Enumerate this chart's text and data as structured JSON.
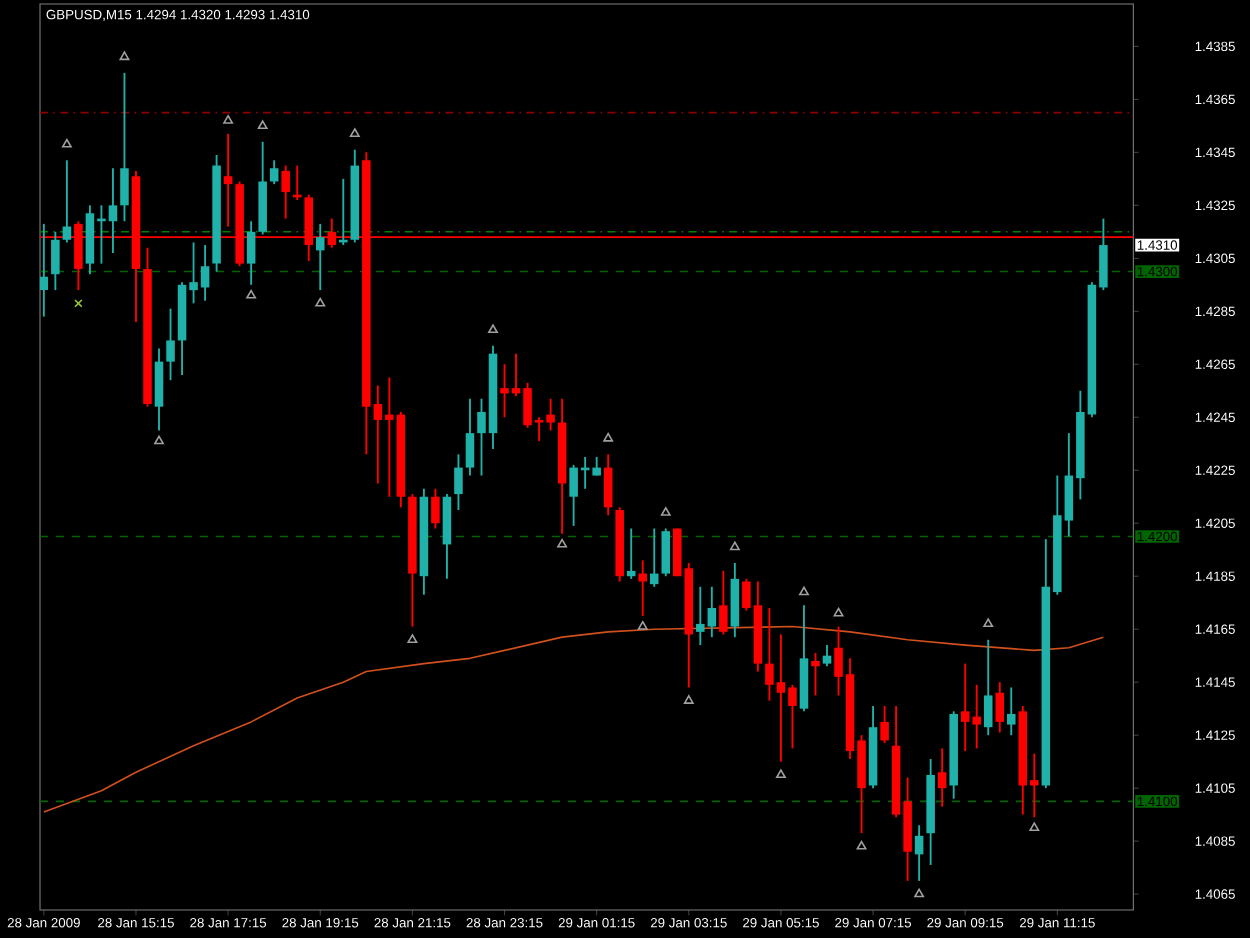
{
  "chart_data": {
    "type": "candlestick",
    "title": "GBPUSD,M15  1.4294 1.4320 1.4293 1.4310",
    "x": [
      "2009-01-28T13:15",
      "2009-01-28T13:30",
      "2009-01-28T13:45",
      "2009-01-28T14:00",
      "2009-01-28T14:15",
      "2009-01-28T14:30",
      "2009-01-28T14:45",
      "2009-01-28T15:00",
      "2009-01-28T15:15",
      "2009-01-28T15:30",
      "2009-01-28T15:45",
      "2009-01-28T16:00",
      "2009-01-28T16:15",
      "2009-01-28T16:30",
      "2009-01-28T16:45",
      "2009-01-28T17:00",
      "2009-01-28T17:15",
      "2009-01-28T17:30",
      "2009-01-28T17:45",
      "2009-01-28T18:00",
      "2009-01-28T18:15",
      "2009-01-28T18:30",
      "2009-01-28T18:45",
      "2009-01-28T19:00",
      "2009-01-28T19:15",
      "2009-01-28T19:30",
      "2009-01-28T19:45",
      "2009-01-28T20:00",
      "2009-01-28T20:15",
      "2009-01-28T20:30",
      "2009-01-28T20:45",
      "2009-01-28T21:00",
      "2009-01-28T21:15",
      "2009-01-28T21:30",
      "2009-01-28T21:45",
      "2009-01-28T22:00",
      "2009-01-28T22:15",
      "2009-01-28T22:30",
      "2009-01-28T22:45",
      "2009-01-28T23:00",
      "2009-01-28T23:15",
      "2009-01-28T23:30",
      "2009-01-28T23:45",
      "2009-01-29T00:00",
      "2009-01-29T00:15",
      "2009-01-29T00:30",
      "2009-01-29T00:45",
      "2009-01-29T01:00",
      "2009-01-29T01:15",
      "2009-01-29T01:30",
      "2009-01-29T01:45",
      "2009-01-29T02:00",
      "2009-01-29T02:15",
      "2009-01-29T02:30",
      "2009-01-29T02:45",
      "2009-01-29T03:00",
      "2009-01-29T03:15",
      "2009-01-29T03:30",
      "2009-01-29T03:45",
      "2009-01-29T04:00",
      "2009-01-29T04:15",
      "2009-01-29T04:30",
      "2009-01-29T04:45",
      "2009-01-29T05:00",
      "2009-01-29T05:15",
      "2009-01-29T05:30",
      "2009-01-29T05:45",
      "2009-01-29T06:00",
      "2009-01-29T06:15",
      "2009-01-29T06:30",
      "2009-01-29T06:45",
      "2009-01-29T07:00",
      "2009-01-29T07:15",
      "2009-01-29T07:30",
      "2009-01-29T07:45",
      "2009-01-29T08:00",
      "2009-01-29T08:15",
      "2009-01-29T08:30",
      "2009-01-29T08:45",
      "2009-01-29T09:00",
      "2009-01-29T09:15",
      "2009-01-29T09:30",
      "2009-01-29T09:45",
      "2009-01-29T10:00",
      "2009-01-29T10:15",
      "2009-01-29T10:30",
      "2009-01-29T10:45",
      "2009-01-29T11:00",
      "2009-01-29T11:15",
      "2009-01-29T11:30",
      "2009-01-29T11:45",
      "2009-01-29T12:00",
      "2009-01-29T12:15"
    ],
    "ohlc": [
      [
        1.4293,
        1.4318,
        1.4283,
        1.4298
      ],
      [
        1.4299,
        1.4315,
        1.4293,
        1.4312
      ],
      [
        1.4312,
        1.4342,
        1.4311,
        1.4317
      ],
      [
        1.4318,
        1.4319,
        1.4293,
        1.4301
      ],
      [
        1.4303,
        1.4325,
        1.4299,
        1.4322
      ],
      [
        1.4319,
        1.4325,
        1.4303,
        1.432
      ],
      [
        1.4319,
        1.4339,
        1.4307,
        1.4325
      ],
      [
        1.4325,
        1.4375,
        1.4319,
        1.4339
      ],
      [
        1.4336,
        1.4338,
        1.4281,
        1.4301
      ],
      [
        1.4301,
        1.4309,
        1.4249,
        1.425
      ],
      [
        1.4249,
        1.4271,
        1.424,
        1.4266
      ],
      [
        1.4266,
        1.4286,
        1.4259,
        1.4274
      ],
      [
        1.4274,
        1.4296,
        1.4261,
        1.4295
      ],
      [
        1.4293,
        1.4311,
        1.4288,
        1.4296
      ],
      [
        1.4294,
        1.431,
        1.4289,
        1.4302
      ],
      [
        1.4303,
        1.4344,
        1.43,
        1.434
      ],
      [
        1.4336,
        1.4352,
        1.4317,
        1.4333
      ],
      [
        1.4333,
        1.4334,
        1.4302,
        1.4303
      ],
      [
        1.4303,
        1.4319,
        1.4295,
        1.4315
      ],
      [
        1.4315,
        1.4349,
        1.4314,
        1.4334
      ],
      [
        1.4334,
        1.4342,
        1.4333,
        1.4339
      ],
      [
        1.4338,
        1.434,
        1.432,
        1.433
      ],
      [
        1.4329,
        1.434,
        1.4327,
        1.4328
      ],
      [
        1.4328,
        1.4329,
        1.4304,
        1.431
      ],
      [
        1.4308,
        1.4318,
        1.4293,
        1.4313
      ],
      [
        1.4315,
        1.432,
        1.4309,
        1.431
      ],
      [
        1.4311,
        1.4335,
        1.431,
        1.4312
      ],
      [
        1.4312,
        1.4346,
        1.4311,
        1.434
      ],
      [
        1.4342,
        1.4345,
        1.4231,
        1.4249
      ],
      [
        1.425,
        1.4257,
        1.422,
        1.4244
      ],
      [
        1.4246,
        1.426,
        1.4215,
        1.4244
      ],
      [
        1.4246,
        1.4247,
        1.4211,
        1.4215
      ],
      [
        1.4215,
        1.4216,
        1.4166,
        1.4186
      ],
      [
        1.4185,
        1.4218,
        1.4178,
        1.4215
      ],
      [
        1.4215,
        1.4218,
        1.4203,
        1.4205
      ],
      [
        1.4197,
        1.4216,
        1.4184,
        1.4215
      ],
      [
        1.4216,
        1.4231,
        1.421,
        1.4226
      ],
      [
        1.4226,
        1.4252,
        1.4223,
        1.4239
      ],
      [
        1.4239,
        1.4252,
        1.4223,
        1.4247
      ],
      [
        1.4239,
        1.4272,
        1.4233,
        1.4269
      ],
      [
        1.4256,
        1.4265,
        1.4245,
        1.4254
      ],
      [
        1.4256,
        1.4269,
        1.4253,
        1.4254
      ],
      [
        1.4256,
        1.4258,
        1.4241,
        1.4242
      ],
      [
        1.4244,
        1.4245,
        1.4236,
        1.4243
      ],
      [
        1.4246,
        1.4252,
        1.424,
        1.4243
      ],
      [
        1.4243,
        1.4252,
        1.4201,
        1.422
      ],
      [
        1.4215,
        1.4227,
        1.4204,
        1.4226
      ],
      [
        1.4225,
        1.423,
        1.4218,
        1.4226
      ],
      [
        1.4223,
        1.423,
        1.4223,
        1.4226
      ],
      [
        1.4226,
        1.4231,
        1.4208,
        1.4211
      ],
      [
        1.421,
        1.4211,
        1.4183,
        1.4185
      ],
      [
        1.4185,
        1.4203,
        1.4184,
        1.4187
      ],
      [
        1.4186,
        1.4191,
        1.417,
        1.4183
      ],
      [
        1.4182,
        1.4203,
        1.4181,
        1.4186
      ],
      [
        1.4186,
        1.4203,
        1.4185,
        1.4202
      ],
      [
        1.4203,
        1.4203,
        1.4185,
        1.4185
      ],
      [
        1.4188,
        1.419,
        1.4143,
        1.4163
      ],
      [
        1.4164,
        1.4181,
        1.4159,
        1.4167
      ],
      [
        1.4166,
        1.4181,
        1.4162,
        1.4173
      ],
      [
        1.4174,
        1.4187,
        1.4163,
        1.4164
      ],
      [
        1.4166,
        1.419,
        1.4162,
        1.4184
      ],
      [
        1.4183,
        1.4184,
        1.4172,
        1.4173
      ],
      [
        1.4174,
        1.4183,
        1.4149,
        1.4152
      ],
      [
        1.4152,
        1.4173,
        1.4138,
        1.4144
      ],
      [
        1.4145,
        1.4163,
        1.4115,
        1.4141
      ],
      [
        1.4143,
        1.4144,
        1.412,
        1.4136
      ],
      [
        1.4135,
        1.4174,
        1.4134,
        1.4154
      ],
      [
        1.4153,
        1.4156,
        1.414,
        1.4151
      ],
      [
        1.4152,
        1.4159,
        1.4151,
        1.4155
      ],
      [
        1.4158,
        1.4166,
        1.414,
        1.4147
      ],
      [
        1.4148,
        1.4154,
        1.4116,
        1.4119
      ],
      [
        1.4123,
        1.4125,
        1.4088,
        1.4105
      ],
      [
        1.4106,
        1.4136,
        1.4105,
        1.4128
      ],
      [
        1.413,
        1.4136,
        1.4122,
        1.4123
      ],
      [
        1.4121,
        1.4136,
        1.4094,
        1.4095
      ],
      [
        1.41,
        1.4109,
        1.407,
        1.4081
      ],
      [
        1.408,
        1.4091,
        1.407,
        1.4087
      ],
      [
        1.4088,
        1.4116,
        1.4076,
        1.411
      ],
      [
        1.4111,
        1.412,
        1.4098,
        1.4105
      ],
      [
        1.4106,
        1.4134,
        1.4101,
        1.4133
      ],
      [
        1.4134,
        1.4152,
        1.4119,
        1.413
      ],
      [
        1.4132,
        1.4144,
        1.412,
        1.4129
      ],
      [
        1.4128,
        1.4161,
        1.4125,
        1.414
      ],
      [
        1.4141,
        1.4145,
        1.4126,
        1.413
      ],
      [
        1.4129,
        1.4143,
        1.4125,
        1.4133
      ],
      [
        1.4134,
        1.4136,
        1.4095,
        1.4106
      ],
      [
        1.4108,
        1.4118,
        1.4094,
        1.4106
      ],
      [
        1.4106,
        1.4199,
        1.4105,
        1.4181
      ],
      [
        1.4179,
        1.4223,
        1.4178,
        1.4208
      ],
      [
        1.4206,
        1.4239,
        1.42,
        1.4223
      ],
      [
        1.4222,
        1.4255,
        1.4214,
        1.4247
      ],
      [
        1.4246,
        1.4296,
        1.4245,
        1.4295
      ],
      [
        1.4294,
        1.432,
        1.4293,
        1.431
      ]
    ],
    "colors": [
      "#20b2aa",
      "#20b2aa",
      "#20b2aa",
      "#ff0000",
      "#20b2aa",
      "#20b2aa",
      "#20b2aa",
      "#20b2aa",
      "#ff0000",
      "#ff0000",
      "#20b2aa",
      "#20b2aa",
      "#20b2aa",
      "#20b2aa",
      "#20b2aa",
      "#20b2aa",
      "#ff0000",
      "#ff0000",
      "#20b2aa",
      "#20b2aa",
      "#20b2aa",
      "#ff0000",
      "#ff0000",
      "#ff0000",
      "#20b2aa",
      "#ff0000",
      "#20b2aa",
      "#20b2aa",
      "#ff0000",
      "#ff0000",
      "#ff0000",
      "#ff0000",
      "#ff0000",
      "#20b2aa",
      "#ff0000",
      "#20b2aa",
      "#20b2aa",
      "#20b2aa",
      "#20b2aa",
      "#20b2aa",
      "#ff0000",
      "#ff0000",
      "#ff0000",
      "#ff0000",
      "#ff0000",
      "#ff0000",
      "#20b2aa",
      "#20b2aa",
      "#20b2aa",
      "#ff0000",
      "#ff0000",
      "#20b2aa",
      "#ff0000",
      "#20b2aa",
      "#20b2aa",
      "#ff0000",
      "#ff0000",
      "#20b2aa",
      "#20b2aa",
      "#ff0000",
      "#20b2aa",
      "#ff0000",
      "#ff0000",
      "#ff0000",
      "#ff0000",
      "#ff0000",
      "#20b2aa",
      "#ff0000",
      "#20b2aa",
      "#ff0000",
      "#ff0000",
      "#ff0000",
      "#20b2aa",
      "#ff0000",
      "#ff0000",
      "#ff0000",
      "#20b2aa",
      "#20b2aa",
      "#ff0000",
      "#20b2aa",
      "#ff0000",
      "#ff0000",
      "#20b2aa",
      "#ff0000",
      "#20b2aa",
      "#ff0000",
      "#ff0000",
      "#20b2aa",
      "#20b2aa",
      "#20b2aa",
      "#20b2aa",
      "#20b2aa",
      "#20b2aa"
    ],
    "series": [
      {
        "type": "line",
        "color": "#d2501e",
        "line_style": "solid",
        "x": [
          "2009-01-28T13:15",
          "2009-01-28T14:30",
          "2009-01-28T15:15",
          "2009-01-28T16:30",
          "2009-01-28T17:45",
          "2009-01-28T18:45",
          "2009-01-28T19:45",
          "2009-01-28T20:15",
          "2009-01-28T21:30",
          "2009-01-28T22:30",
          "2009-01-28T23:15",
          "2009-01-29T00:30",
          "2009-01-29T01:30",
          "2009-01-29T02:30",
          "2009-01-29T05:30",
          "2009-01-29T06:45",
          "2009-01-29T08:00",
          "2009-01-29T09:15",
          "2009-01-29T10:45",
          "2009-01-29T11:30",
          "2009-01-29T12:15"
        ],
        "values": [
          1.4096,
          1.4104,
          1.4111,
          1.4121,
          1.413,
          1.4139,
          1.4145,
          1.4149,
          1.4152,
          1.4154,
          1.4157,
          1.4162,
          1.4164,
          1.4165,
          1.4166,
          1.4164,
          1.4161,
          1.4159,
          1.4157,
          1.4158,
          1.4162
        ]
      },
      {
        "type": "scatter",
        "color": "#a0a0a0",
        "marker": "triangle",
        "x": [
          "2009-01-28T13:45",
          "2009-01-28T15:00",
          "2009-01-28T17:15",
          "2009-01-28T18:00",
          "2009-01-28T20:00",
          "2009-01-28T23:00",
          "2009-01-29T01:30",
          "2009-01-29T02:45",
          "2009-01-29T04:15",
          "2009-01-29T05:45",
          "2009-01-29T06:30",
          "2009-01-29T09:45"
        ],
        "values": [
          1.4348,
          1.4381,
          1.4357,
          1.4355,
          1.4352,
          1.4278,
          1.4237,
          1.4209,
          1.4196,
          1.4179,
          1.4171,
          1.4167
        ]
      },
      {
        "type": "scatter",
        "color": "#a0a0a0",
        "marker": "triangle",
        "x": [
          "2009-01-28T15:45",
          "2009-01-28T17:45",
          "2009-01-28T19:15",
          "2009-01-28T21:15",
          "2009-01-29T00:30",
          "2009-01-29T02:15",
          "2009-01-29T03:15",
          "2009-01-29T05:15",
          "2009-01-29T07:00",
          "2009-01-29T08:15",
          "2009-01-29T10:45"
        ],
        "values": [
          1.4236,
          1.4291,
          1.4288,
          1.4161,
          1.4197,
          1.4166,
          1.4138,
          1.411,
          1.4083,
          1.4065,
          1.409
        ]
      },
      {
        "type": "scatter",
        "color": "#9acd32",
        "marker": "cross",
        "x": [
          "2009-01-28T14:00"
        ],
        "values": [
          1.4288
        ]
      }
    ],
    "ref_lines": [
      {
        "axis": "y",
        "value": 1.436,
        "color": "#8b0000",
        "line_style": "dashdot"
      },
      {
        "axis": "y",
        "value": 1.4315,
        "color": "#008000",
        "line_style": "dashdot"
      },
      {
        "axis": "y",
        "value": 1.4313,
        "color": "#ff0000",
        "line_style": "solid"
      },
      {
        "axis": "y",
        "value": 1.43,
        "color": "#006400",
        "line_style": "dashed",
        "label": "1.4300"
      },
      {
        "axis": "y",
        "value": 1.42,
        "color": "#006400",
        "line_style": "dashed",
        "label": "1.4200"
      },
      {
        "axis": "y",
        "value": 1.41,
        "color": "#006400",
        "line_style": "dashed",
        "label": "1.4100"
      }
    ],
    "annotations": [
      "1.4310"
    ],
    "xlim": [
      "2009-01-28T13:10",
      "2009-01-29T12:54"
    ],
    "ylim": [
      1.4059,
      1.4401
    ],
    "xticks": [
      {
        "value": "2009-01-28T13:15",
        "label": "28 Jan 2009"
      },
      {
        "value": "2009-01-28T15:15",
        "label": "28 Jan 15:15"
      },
      {
        "value": "2009-01-28T17:15",
        "label": "28 Jan 17:15"
      },
      {
        "value": "2009-01-28T19:15",
        "label": "28 Jan 19:15"
      },
      {
        "value": "2009-01-28T21:15",
        "label": "28 Jan 21:15"
      },
      {
        "value": "2009-01-28T23:15",
        "label": "28 Jan 23:15"
      },
      {
        "value": "2009-01-29T01:15",
        "label": "29 Jan 01:15"
      },
      {
        "value": "2009-01-29T03:15",
        "label": "29 Jan 03:15"
      },
      {
        "value": "2009-01-29T05:15",
        "label": "29 Jan 05:15"
      },
      {
        "value": "2009-01-29T07:15",
        "label": "29 Jan 07:15"
      },
      {
        "value": "2009-01-29T09:15",
        "label": "29 Jan 09:15"
      },
      {
        "value": "2009-01-29T11:15",
        "label": "29 Jan 11:15"
      }
    ],
    "yticks": [
      1.4385,
      1.4365,
      1.4345,
      1.4325,
      1.4305,
      1.4285,
      1.4265,
      1.4245,
      1.4225,
      1.4205,
      1.4185,
      1.4165,
      1.4145,
      1.4125,
      1.4105,
      1.4085,
      1.4065
    ]
  }
}
